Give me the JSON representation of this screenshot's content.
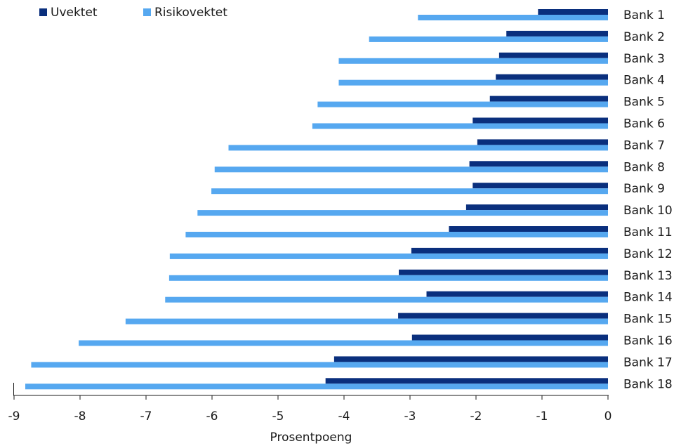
{
  "chart_data": {
    "type": "bar",
    "orientation": "horizontal",
    "categories": [
      "Bank 1",
      "Bank 2",
      "Bank 3",
      "Bank 4",
      "Bank 5",
      "Bank 6",
      "Bank 7",
      "Bank 8",
      "Bank 9",
      "Bank 10",
      "Bank 11",
      "Bank 12",
      "Bank 13",
      "Bank 14",
      "Bank 15",
      "Bank 16",
      "Bank 17",
      "Bank 18"
    ],
    "series": [
      {
        "name": "Uvektet",
        "color": "#0a2f7d",
        "values": [
          -1.06,
          -1.54,
          -1.65,
          -1.7,
          -1.79,
          -2.05,
          -1.98,
          -2.1,
          -2.05,
          -2.15,
          -2.41,
          -2.98,
          -3.17,
          -2.75,
          -3.18,
          -2.97,
          -4.15,
          -4.28
        ]
      },
      {
        "name": "Risikovektet",
        "color": "#56a8f0",
        "values": [
          -2.88,
          -3.62,
          -4.08,
          -4.08,
          -4.4,
          -4.48,
          -5.75,
          -5.96,
          -6.01,
          -6.22,
          -6.4,
          -6.64,
          -6.65,
          -6.71,
          -7.31,
          -8.02,
          -8.74,
          -8.83
        ]
      }
    ],
    "xlabel": "Prosentpoeng",
    "xlim": [
      -9,
      0
    ],
    "xticks": [
      "-9",
      "-8",
      "-7",
      "-6",
      "-5",
      "-4",
      "-3",
      "-2",
      "-1",
      "0"
    ],
    "legend_position": "top-left",
    "grid": false
  }
}
